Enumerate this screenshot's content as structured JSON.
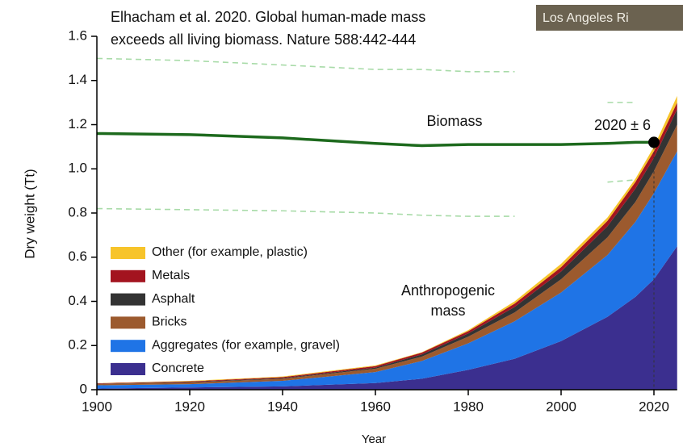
{
  "header": {
    "lines": [
      "Elhacham et al. 2020.  Global human-made mass",
      "exceeds all living biomass.  Nature 588:442-444"
    ],
    "badge": "Los Angeles Ri"
  },
  "chart_data": {
    "type": "stacked-area",
    "x_label": "Year",
    "y_label": "Dry weight (Tt)",
    "x": [
      1900,
      1920,
      1940,
      1960,
      1970,
      1980,
      1990,
      2000,
      2010,
      2016,
      2020,
      2025
    ],
    "xlim": [
      1900,
      2025
    ],
    "xticks": [
      1900,
      1920,
      1940,
      1960,
      1980,
      2000,
      2020
    ],
    "ylim": [
      0,
      1.6
    ],
    "yticks": [
      0,
      0.2,
      0.4,
      0.6,
      0.8,
      {
        "value": 1,
        "label": "1.0"
      },
      1.2,
      1.4,
      1.6
    ],
    "legend": "lower left",
    "series": [
      {
        "name": "Concrete",
        "color": "#3b2f8f",
        "values": [
          0.005,
          0.01,
          0.015,
          0.03,
          0.05,
          0.09,
          0.14,
          0.22,
          0.33,
          0.42,
          0.5,
          0.65
        ]
      },
      {
        "name": "Aggregates (for example, gravel)",
        "color": "#1f74e6",
        "values": [
          0.015,
          0.015,
          0.025,
          0.05,
          0.08,
          0.12,
          0.17,
          0.22,
          0.28,
          0.34,
          0.39,
          0.43
        ]
      },
      {
        "name": "Bricks",
        "color": "#9c5a2e",
        "values": [
          0.006,
          0.008,
          0.01,
          0.015,
          0.02,
          0.03,
          0.04,
          0.06,
          0.08,
          0.09,
          0.1,
          0.12
        ]
      },
      {
        "name": "Asphalt",
        "color": "#333333",
        "values": [
          0.001,
          0.002,
          0.003,
          0.005,
          0.01,
          0.015,
          0.025,
          0.035,
          0.05,
          0.06,
          0.06,
          0.07
        ]
      },
      {
        "name": "Metals",
        "color": "#a3141f",
        "values": [
          0.002,
          0.003,
          0.004,
          0.007,
          0.008,
          0.01,
          0.015,
          0.02,
          0.025,
          0.03,
          0.03,
          0.03
        ]
      },
      {
        "name": "Other (for example, plastic)",
        "color": "#f7c42a",
        "values": [
          0.001,
          0.002,
          0.003,
          0.003,
          0.002,
          0.005,
          0.01,
          0.015,
          0.015,
          0.015,
          0.02,
          0.03
        ]
      }
    ],
    "lines": [
      {
        "label": "Biomass",
        "color": "#1d6a1d",
        "values": [
          1.16,
          1.155,
          1.14,
          1.115,
          1.105,
          1.11,
          1.11,
          1.11,
          1.115,
          1.12,
          1.12,
          null
        ]
      },
      {
        "color": "#a8dba8",
        "dashed": true,
        "values": [
          1.5,
          1.49,
          1.47,
          1.45,
          1.45,
          1.44,
          1.44,
          null,
          1.3,
          1.3,
          null,
          null
        ]
      },
      {
        "color": "#a8dba8",
        "dashed": true,
        "values": [
          0.82,
          0.815,
          0.81,
          0.8,
          0.79,
          0.785,
          0.785,
          null,
          0.94,
          0.95,
          null,
          null
        ]
      }
    ],
    "crossover": {
      "x": 2020,
      "value": 1.12,
      "label": "2020 ± 6"
    },
    "area_label": [
      "Anthropogenic",
      "mass"
    ]
  }
}
